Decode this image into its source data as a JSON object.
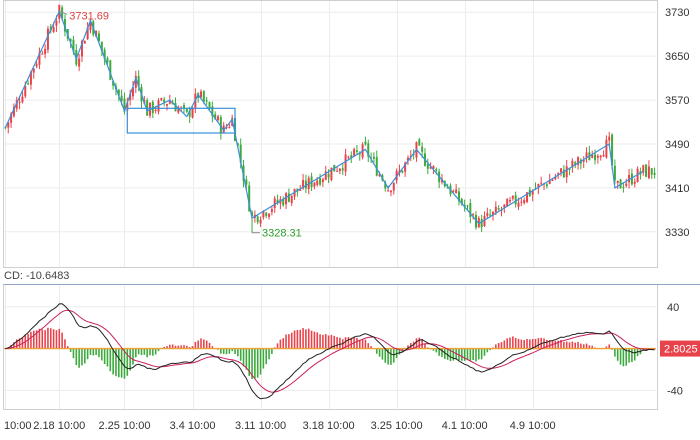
{
  "chart_data": [
    {
      "type": "candlestick",
      "panel": "price",
      "y_ticks": [
        "3730",
        "3650",
        "3570",
        "3490",
        "3410",
        "3330"
      ],
      "ylim": [
        3275,
        3745
      ],
      "x_ticks": [
        "10:00",
        "2.18 10:00",
        "2.25 10:00",
        "3.4 10:00",
        "3.11 10:00",
        "3.18 10:00",
        "3.25 10:00",
        "4.1 10:00",
        "4.9 10:00"
      ],
      "grid": true,
      "colors": {
        "up": "#e8434b",
        "down": "#3caa3c",
        "zigzag": "#3a8fd8",
        "high_label": "#e04040",
        "low_label": "#2a9d2a"
      },
      "high": {
        "label": "3731.69",
        "value": 3731.69
      },
      "low": {
        "label": "3328.31",
        "value": 3328.31
      },
      "zigzag": [
        [
          0,
          3520
        ],
        [
          19,
          3731.69
        ],
        [
          25,
          3645
        ],
        [
          30,
          3715
        ],
        [
          42,
          3550
        ],
        [
          46,
          3610
        ],
        [
          50,
          3550
        ],
        [
          58,
          3570
        ],
        [
          64,
          3540
        ],
        [
          68,
          3580
        ],
        [
          77,
          3515
        ],
        [
          80,
          3535
        ],
        [
          87,
          3355
        ],
        [
          127,
          3480
        ],
        [
          135,
          3410
        ],
        [
          145,
          3480
        ],
        [
          167,
          3345
        ],
        [
          213,
          3490
        ],
        [
          215,
          3410
        ],
        [
          225,
          3440
        ]
      ],
      "consolidation_box": {
        "from": 43,
        "to": 81,
        "top": 3555,
        "bottom": 3510
      },
      "ohlc": []
    },
    {
      "type": "macd",
      "panel": "indicator",
      "label": "CD: -10.6483",
      "y_ticks": [
        "40",
        "-40"
      ],
      "ylim": [
        -55,
        58
      ],
      "zero_line_value": 0,
      "current_value_label": "2.8025",
      "colors": {
        "dif": "#222222",
        "dea": "#cc2060",
        "hist_up": "#e8434b",
        "hist_down": "#3caa3c",
        "zero_line": "#f0a030",
        "value_badge": "#e8434b"
      },
      "dif": [],
      "dea": [],
      "histogram": []
    }
  ]
}
